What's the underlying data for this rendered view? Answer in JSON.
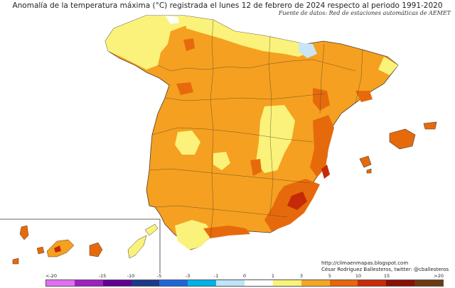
{
  "title": "Anomalía de la temperatura máxima (°C) registrada el lunes 12 de febrero de 2024 respecto al periodo 1991-2020",
  "subtitle": "Fuente de datos: Red de estaciones automáticas de AEMET",
  "credit_url": "http://climaenmapas.blogspot.com",
  "credit_author": "César Rodríguez Ballesteros, twitter: @cballesteros",
  "legend": {
    "ticks": [
      "<-20",
      "-15",
      "-10",
      "-5",
      "-3",
      "-1",
      "0",
      "1",
      "3",
      "5",
      "10",
      "15",
      ">20"
    ],
    "colors": [
      "#e070f0",
      "#a020c0",
      "#600090",
      "#1a3a8a",
      "#1f66d9",
      "#00b2e6",
      "#bfe3f7",
      "#ffffff",
      "#fbf27a",
      "#f6a623",
      "#e8660a",
      "#c92a08",
      "#8a1004",
      "#6b3a12"
    ]
  },
  "colors": {
    "anomaly_1_3": "#faf27a",
    "anomaly_3_5": "#f5a020",
    "anomaly_5_10": "#e66a0c",
    "anomaly_10_15": "#c52a08",
    "anomaly_neg": "#c9e5f7",
    "border": "#4a3a2a"
  }
}
